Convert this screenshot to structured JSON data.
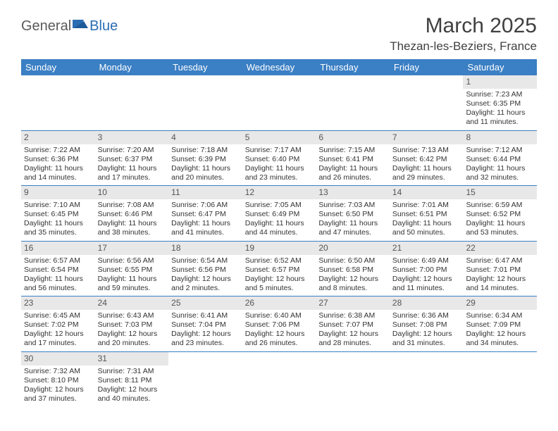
{
  "brand": {
    "part1": "General",
    "part2": "Blue"
  },
  "title": "March 2025",
  "location": "Thezan-les-Beziers, France",
  "colors": {
    "header_bg": "#3b7fc4",
    "header_text": "#ffffff",
    "day_number_bg": "#e8e8e8",
    "border": "#3b7fc4",
    "brand_gray": "#5a5a5a",
    "brand_blue": "#2a6db3",
    "text": "#333333"
  },
  "fonts": {
    "title_size": 30,
    "location_size": 17,
    "weekday_size": 13,
    "daynum_size": 12,
    "body_size": 10.5
  },
  "weekdays": [
    "Sunday",
    "Monday",
    "Tuesday",
    "Wednesday",
    "Thursday",
    "Friday",
    "Saturday"
  ],
  "weeks": [
    [
      {
        "blank": true
      },
      {
        "blank": true
      },
      {
        "blank": true
      },
      {
        "blank": true
      },
      {
        "blank": true
      },
      {
        "blank": true
      },
      {
        "n": "1",
        "sunrise": "Sunrise: 7:23 AM",
        "sunset": "Sunset: 6:35 PM",
        "day1": "Daylight: 11 hours",
        "day2": "and 11 minutes."
      }
    ],
    [
      {
        "n": "2",
        "sunrise": "Sunrise: 7:22 AM",
        "sunset": "Sunset: 6:36 PM",
        "day1": "Daylight: 11 hours",
        "day2": "and 14 minutes."
      },
      {
        "n": "3",
        "sunrise": "Sunrise: 7:20 AM",
        "sunset": "Sunset: 6:37 PM",
        "day1": "Daylight: 11 hours",
        "day2": "and 17 minutes."
      },
      {
        "n": "4",
        "sunrise": "Sunrise: 7:18 AM",
        "sunset": "Sunset: 6:39 PM",
        "day1": "Daylight: 11 hours",
        "day2": "and 20 minutes."
      },
      {
        "n": "5",
        "sunrise": "Sunrise: 7:17 AM",
        "sunset": "Sunset: 6:40 PM",
        "day1": "Daylight: 11 hours",
        "day2": "and 23 minutes."
      },
      {
        "n": "6",
        "sunrise": "Sunrise: 7:15 AM",
        "sunset": "Sunset: 6:41 PM",
        "day1": "Daylight: 11 hours",
        "day2": "and 26 minutes."
      },
      {
        "n": "7",
        "sunrise": "Sunrise: 7:13 AM",
        "sunset": "Sunset: 6:42 PM",
        "day1": "Daylight: 11 hours",
        "day2": "and 29 minutes."
      },
      {
        "n": "8",
        "sunrise": "Sunrise: 7:12 AM",
        "sunset": "Sunset: 6:44 PM",
        "day1": "Daylight: 11 hours",
        "day2": "and 32 minutes."
      }
    ],
    [
      {
        "n": "9",
        "sunrise": "Sunrise: 7:10 AM",
        "sunset": "Sunset: 6:45 PM",
        "day1": "Daylight: 11 hours",
        "day2": "and 35 minutes."
      },
      {
        "n": "10",
        "sunrise": "Sunrise: 7:08 AM",
        "sunset": "Sunset: 6:46 PM",
        "day1": "Daylight: 11 hours",
        "day2": "and 38 minutes."
      },
      {
        "n": "11",
        "sunrise": "Sunrise: 7:06 AM",
        "sunset": "Sunset: 6:47 PM",
        "day1": "Daylight: 11 hours",
        "day2": "and 41 minutes."
      },
      {
        "n": "12",
        "sunrise": "Sunrise: 7:05 AM",
        "sunset": "Sunset: 6:49 PM",
        "day1": "Daylight: 11 hours",
        "day2": "and 44 minutes."
      },
      {
        "n": "13",
        "sunrise": "Sunrise: 7:03 AM",
        "sunset": "Sunset: 6:50 PM",
        "day1": "Daylight: 11 hours",
        "day2": "and 47 minutes."
      },
      {
        "n": "14",
        "sunrise": "Sunrise: 7:01 AM",
        "sunset": "Sunset: 6:51 PM",
        "day1": "Daylight: 11 hours",
        "day2": "and 50 minutes."
      },
      {
        "n": "15",
        "sunrise": "Sunrise: 6:59 AM",
        "sunset": "Sunset: 6:52 PM",
        "day1": "Daylight: 11 hours",
        "day2": "and 53 minutes."
      }
    ],
    [
      {
        "n": "16",
        "sunrise": "Sunrise: 6:57 AM",
        "sunset": "Sunset: 6:54 PM",
        "day1": "Daylight: 11 hours",
        "day2": "and 56 minutes."
      },
      {
        "n": "17",
        "sunrise": "Sunrise: 6:56 AM",
        "sunset": "Sunset: 6:55 PM",
        "day1": "Daylight: 11 hours",
        "day2": "and 59 minutes."
      },
      {
        "n": "18",
        "sunrise": "Sunrise: 6:54 AM",
        "sunset": "Sunset: 6:56 PM",
        "day1": "Daylight: 12 hours",
        "day2": "and 2 minutes."
      },
      {
        "n": "19",
        "sunrise": "Sunrise: 6:52 AM",
        "sunset": "Sunset: 6:57 PM",
        "day1": "Daylight: 12 hours",
        "day2": "and 5 minutes."
      },
      {
        "n": "20",
        "sunrise": "Sunrise: 6:50 AM",
        "sunset": "Sunset: 6:58 PM",
        "day1": "Daylight: 12 hours",
        "day2": "and 8 minutes."
      },
      {
        "n": "21",
        "sunrise": "Sunrise: 6:49 AM",
        "sunset": "Sunset: 7:00 PM",
        "day1": "Daylight: 12 hours",
        "day2": "and 11 minutes."
      },
      {
        "n": "22",
        "sunrise": "Sunrise: 6:47 AM",
        "sunset": "Sunset: 7:01 PM",
        "day1": "Daylight: 12 hours",
        "day2": "and 14 minutes."
      }
    ],
    [
      {
        "n": "23",
        "sunrise": "Sunrise: 6:45 AM",
        "sunset": "Sunset: 7:02 PM",
        "day1": "Daylight: 12 hours",
        "day2": "and 17 minutes."
      },
      {
        "n": "24",
        "sunrise": "Sunrise: 6:43 AM",
        "sunset": "Sunset: 7:03 PM",
        "day1": "Daylight: 12 hours",
        "day2": "and 20 minutes."
      },
      {
        "n": "25",
        "sunrise": "Sunrise: 6:41 AM",
        "sunset": "Sunset: 7:04 PM",
        "day1": "Daylight: 12 hours",
        "day2": "and 23 minutes."
      },
      {
        "n": "26",
        "sunrise": "Sunrise: 6:40 AM",
        "sunset": "Sunset: 7:06 PM",
        "day1": "Daylight: 12 hours",
        "day2": "and 26 minutes."
      },
      {
        "n": "27",
        "sunrise": "Sunrise: 6:38 AM",
        "sunset": "Sunset: 7:07 PM",
        "day1": "Daylight: 12 hours",
        "day2": "and 28 minutes."
      },
      {
        "n": "28",
        "sunrise": "Sunrise: 6:36 AM",
        "sunset": "Sunset: 7:08 PM",
        "day1": "Daylight: 12 hours",
        "day2": "and 31 minutes."
      },
      {
        "n": "29",
        "sunrise": "Sunrise: 6:34 AM",
        "sunset": "Sunset: 7:09 PM",
        "day1": "Daylight: 12 hours",
        "day2": "and 34 minutes."
      }
    ],
    [
      {
        "n": "30",
        "sunrise": "Sunrise: 7:32 AM",
        "sunset": "Sunset: 8:10 PM",
        "day1": "Daylight: 12 hours",
        "day2": "and 37 minutes."
      },
      {
        "n": "31",
        "sunrise": "Sunrise: 7:31 AM",
        "sunset": "Sunset: 8:11 PM",
        "day1": "Daylight: 12 hours",
        "day2": "and 40 minutes."
      },
      {
        "blank": true
      },
      {
        "blank": true
      },
      {
        "blank": true
      },
      {
        "blank": true
      },
      {
        "blank": true
      }
    ]
  ]
}
